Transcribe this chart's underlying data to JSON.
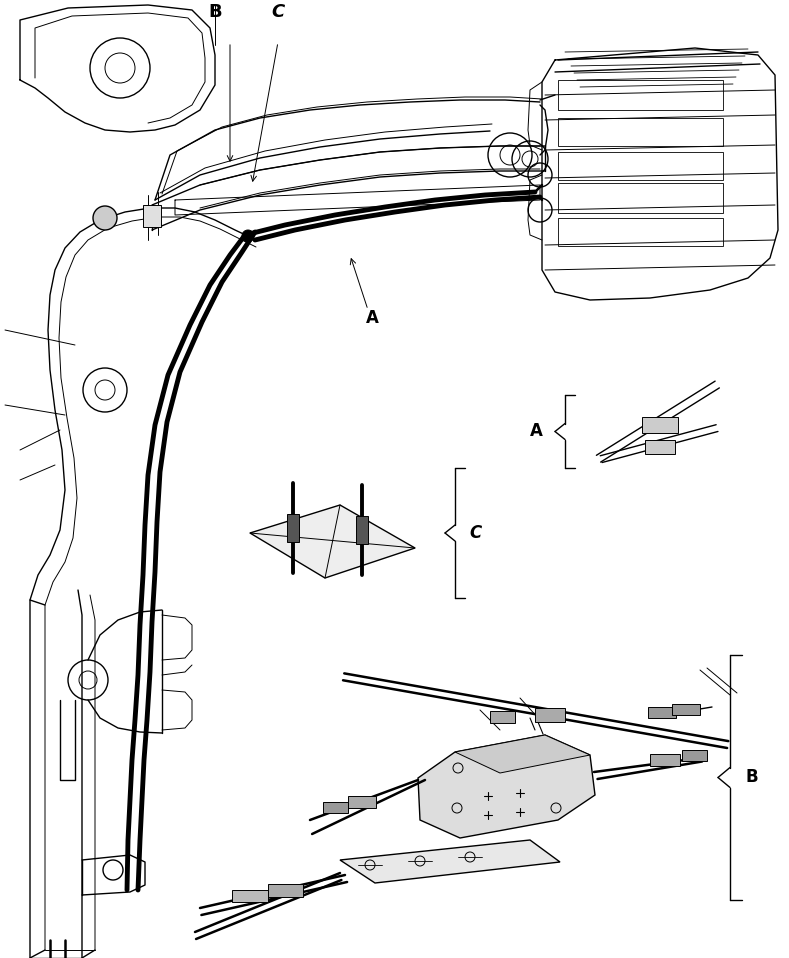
{
  "figsize": [
    7.89,
    9.58
  ],
  "dpi": 100,
  "bg_color": "#ffffff",
  "labels": {
    "A_main": "A",
    "B_main": "B",
    "C_main": "C",
    "A_detail": "A",
    "B_detail": "B",
    "C_detail": "C"
  }
}
